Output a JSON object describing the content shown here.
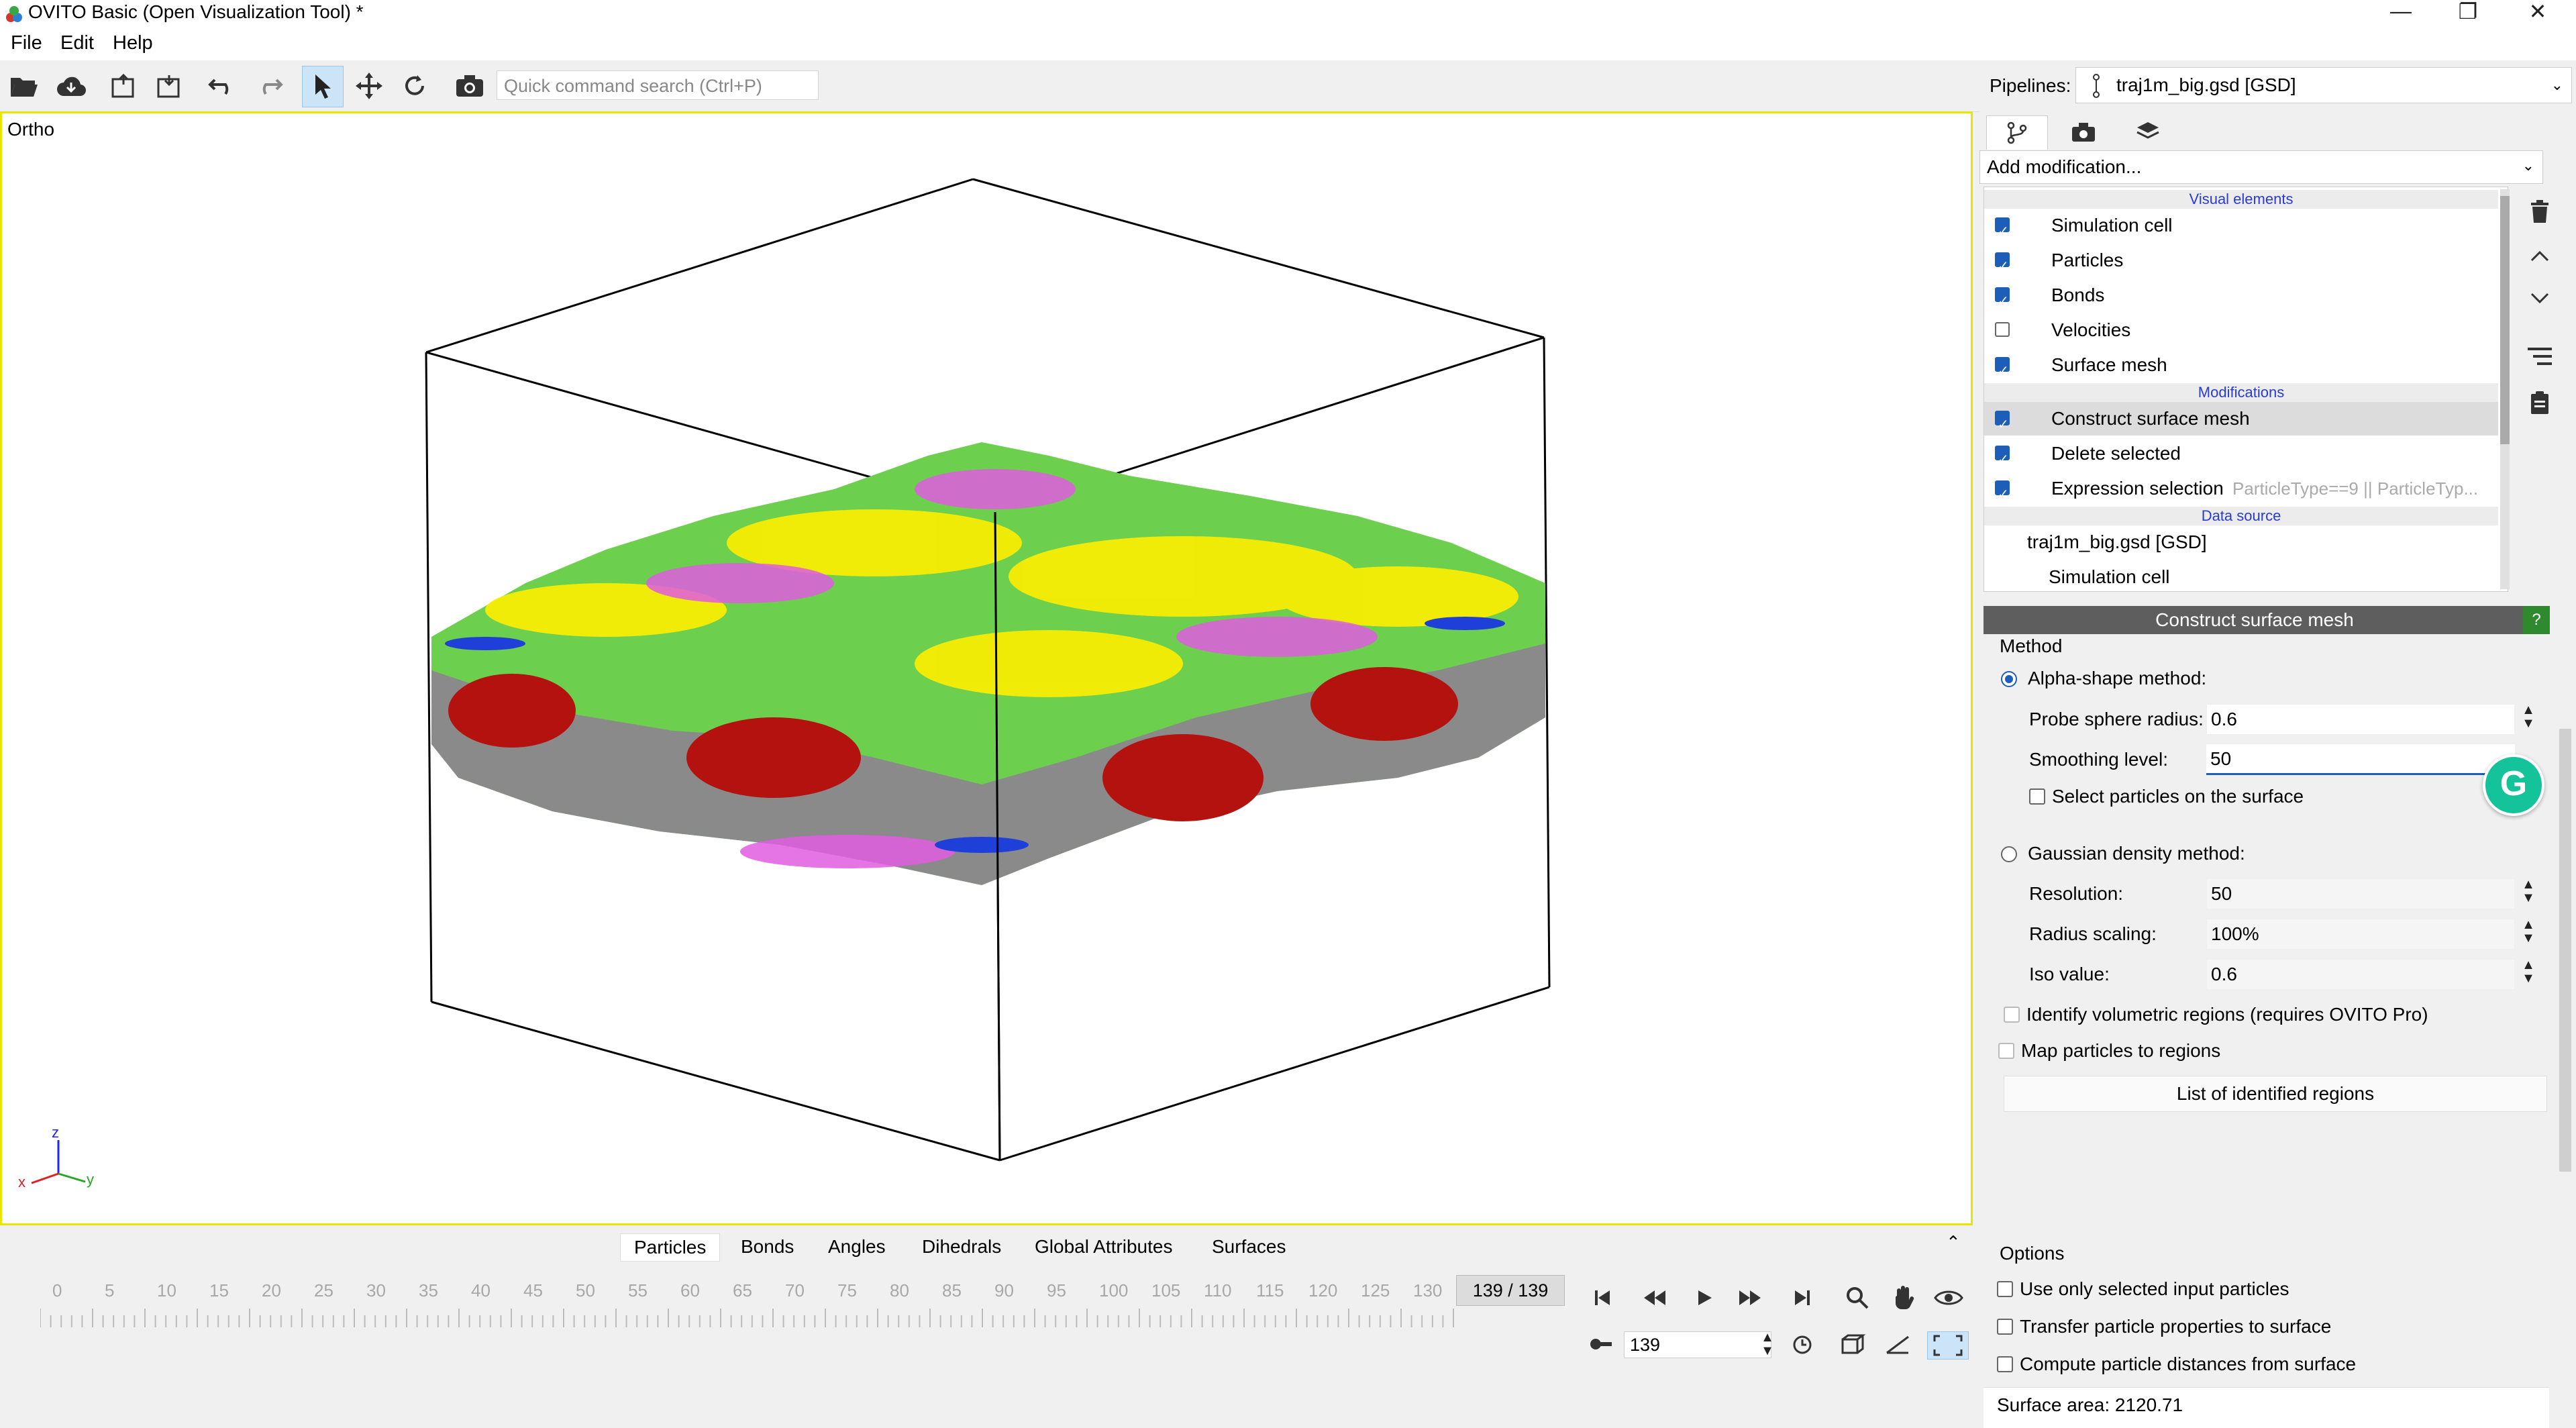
{
  "window": {
    "title": "OVITO Basic (Open Visualization Tool) *",
    "controls": [
      "—",
      "❐",
      "✕"
    ]
  },
  "menu": {
    "file": "File",
    "edit": "Edit",
    "help": "Help"
  },
  "toolbar": {
    "search_placeholder": "Quick command search (Ctrl+P)",
    "pipelines_label": "Pipelines:",
    "pipeline_selected": "traj1m_big.gsd [GSD]"
  },
  "viewport": {
    "label": "Ortho",
    "axes": {
      "x": "x",
      "y": "y",
      "z": "z"
    }
  },
  "data_tabs": [
    "Particles",
    "Bonds",
    "Angles",
    "Dihedrals",
    "Global Attributes",
    "Surfaces"
  ],
  "timeline": {
    "ticks": [
      "0",
      "5",
      "10",
      "15",
      "20",
      "25",
      "30",
      "35",
      "40",
      "45",
      "50",
      "55",
      "60",
      "65",
      "70",
      "75",
      "80",
      "85",
      "90",
      "95",
      "100",
      "105",
      "110",
      "115",
      "120",
      "125",
      "130"
    ],
    "frame_display": "139 / 139",
    "current_frame": "139"
  },
  "right_panel": {
    "add_modification": "Add modification...",
    "pipeline": {
      "visual_header": "Visual elements",
      "visual_elements": [
        {
          "label": "Simulation cell",
          "checked": true
        },
        {
          "label": "Particles",
          "checked": true
        },
        {
          "label": "Bonds",
          "checked": true
        },
        {
          "label": "Velocities",
          "checked": false
        },
        {
          "label": "Surface mesh",
          "checked": true
        }
      ],
      "modifications_header": "Modifications",
      "modifications": [
        {
          "label": "Construct surface mesh",
          "checked": true,
          "selected": true
        },
        {
          "label": "Delete selected",
          "checked": true
        },
        {
          "label": "Expression selection",
          "checked": true,
          "extra": "ParticleType==9 || ParticleTyp..."
        }
      ],
      "data_source_header": "Data source",
      "data_source": "traj1m_big.gsd [GSD]",
      "data_source_child": "Simulation cell"
    },
    "props": {
      "title": "Construct surface mesh",
      "help": "?",
      "method_group": "Method",
      "alpha_label": "Alpha-shape method:",
      "probe_label": "Probe sphere radius:",
      "probe_value": "0.6",
      "smoothing_label": "Smoothing level:",
      "smoothing_value": "50",
      "select_particles": "Select particles on the surface",
      "gaussian_label": "Gaussian density method:",
      "resolution_label": "Resolution:",
      "resolution_value": "50",
      "radius_scaling_label": "Radius scaling:",
      "radius_scaling_value": "100%",
      "iso_label": "Iso value:",
      "iso_value": "0.6",
      "identify_regions": "Identify volumetric regions (requires OVITO Pro)",
      "map_particles": "Map particles to regions",
      "list_regions": "List of identified regions",
      "options_group": "Options",
      "opt_selected_only": "Use only selected input particles",
      "opt_transfer": "Transfer particle properties to surface",
      "opt_distances": "Compute particle distances from surface",
      "surface_area": "Surface area: 2120.71"
    }
  },
  "overlay": {
    "grammarly": "G"
  }
}
